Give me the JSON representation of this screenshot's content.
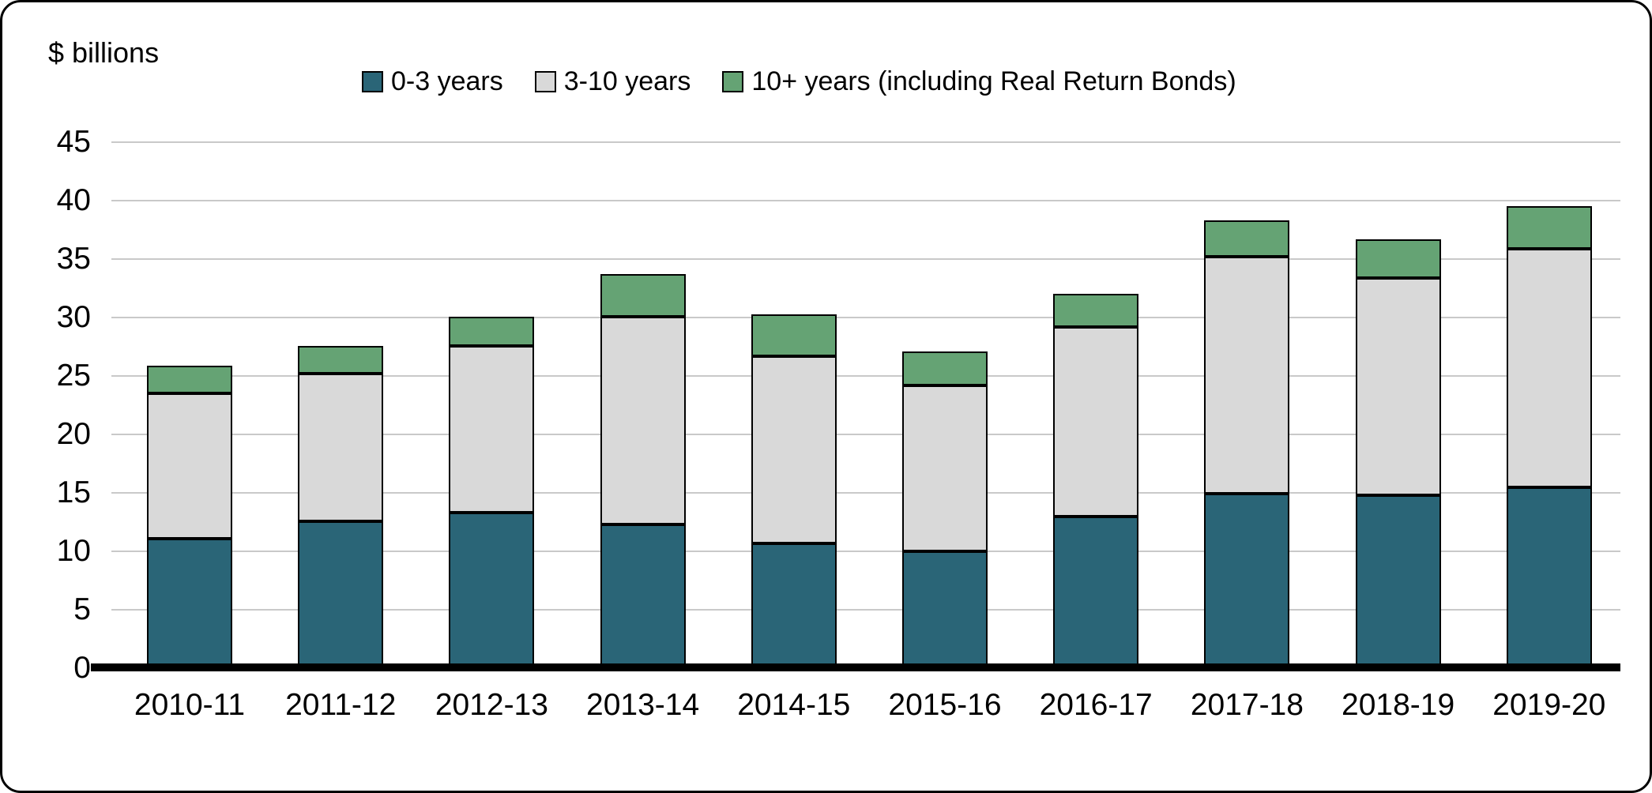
{
  "chart_data": {
    "type": "bar",
    "stacked": true,
    "unit_label": "$ billions",
    "categories": [
      "2010-11",
      "2011-12",
      "2012-13",
      "2013-14",
      "2014-15",
      "2015-16",
      "2016-17",
      "2017-18",
      "2018-19",
      "2019-20"
    ],
    "series": [
      {
        "name": "0-3 years",
        "color": "#2A6577",
        "values": [
          11.1,
          12.6,
          13.3,
          12.3,
          10.7,
          10.0,
          13.0,
          14.9,
          14.8,
          15.5
        ]
      },
      {
        "name": "3-10 years",
        "color": "#D9D9D9",
        "values": [
          12.4,
          12.6,
          14.3,
          17.8,
          16.0,
          14.2,
          16.2,
          20.3,
          18.6,
          20.4
        ]
      },
      {
        "name": "10+ years (including Real Return Bonds)",
        "color": "#65A374",
        "values": [
          2.4,
          2.4,
          2.5,
          3.6,
          3.6,
          2.9,
          2.8,
          3.1,
          3.3,
          3.6
        ]
      }
    ],
    "totals": [
      25.9,
      27.6,
      30.1,
      33.7,
      30.3,
      27.1,
      32.0,
      38.3,
      36.7,
      39.5
    ],
    "ylim": [
      0,
      45
    ],
    "yticks": [
      0,
      5,
      10,
      15,
      20,
      25,
      30,
      35,
      40,
      45
    ],
    "grid": true,
    "legend_position": "top",
    "colors": {
      "gridline": "#C9C9C9",
      "axis": "#000000",
      "bar_border": "#000000",
      "background": "#FFFFFF"
    }
  }
}
